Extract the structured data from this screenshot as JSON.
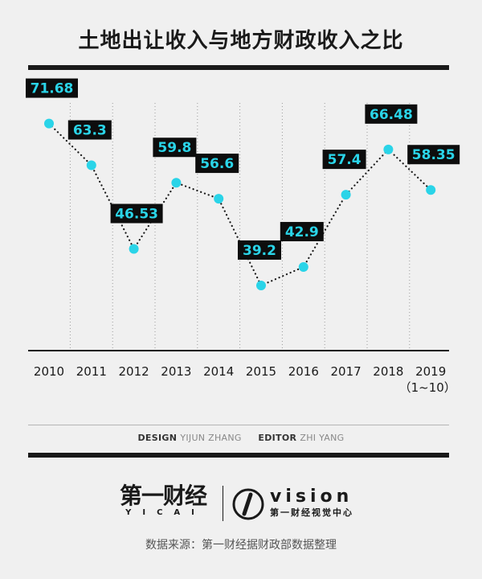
{
  "header": {
    "title": "土地出让收入与地方财政收入之比",
    "unit": "（%）"
  },
  "colors": {
    "point": "#2ad4e8",
    "label_bg": "#0d0d0d",
    "label_text": "#2ad4e8",
    "line": "#1a1a1a"
  },
  "chart_data": {
    "type": "line",
    "title": "土地出让收入与地方财政收入之比",
    "ylabel": "（%）",
    "xlabel": "",
    "categories": [
      "2010",
      "2011",
      "2012",
      "2013",
      "2014",
      "2015",
      "2016",
      "2017",
      "2018",
      "2019"
    ],
    "category_sublabels": {
      "2019": "（1~10）"
    },
    "series": [
      {
        "values": [
          71.68,
          63.3,
          46.53,
          59.8,
          56.6,
          39.2,
          42.9,
          57.4,
          66.48,
          58.35
        ]
      }
    ],
    "data_labels": [
      "71.68",
      "63.3",
      "46.53",
      "59.8",
      "56.6",
      "39.2",
      "42.9",
      "57.4",
      "66.48",
      "58.35"
    ],
    "line_style": "dotted",
    "ylim": [
      20,
      80
    ],
    "grid": false,
    "legend": "none"
  },
  "credits": {
    "design_label": "DESIGN",
    "design_name": "YIJUN ZHANG",
    "editor_label": "EDITOR",
    "editor_name": "ZHI YANG"
  },
  "logos": {
    "yicai_cn": "第一财经",
    "yicai_en": "YICAI",
    "vision_en": "vision",
    "vision_cn": "第一财经视觉中心"
  },
  "footer": {
    "source": "数据来源：第一财经据财政部数据整理"
  }
}
